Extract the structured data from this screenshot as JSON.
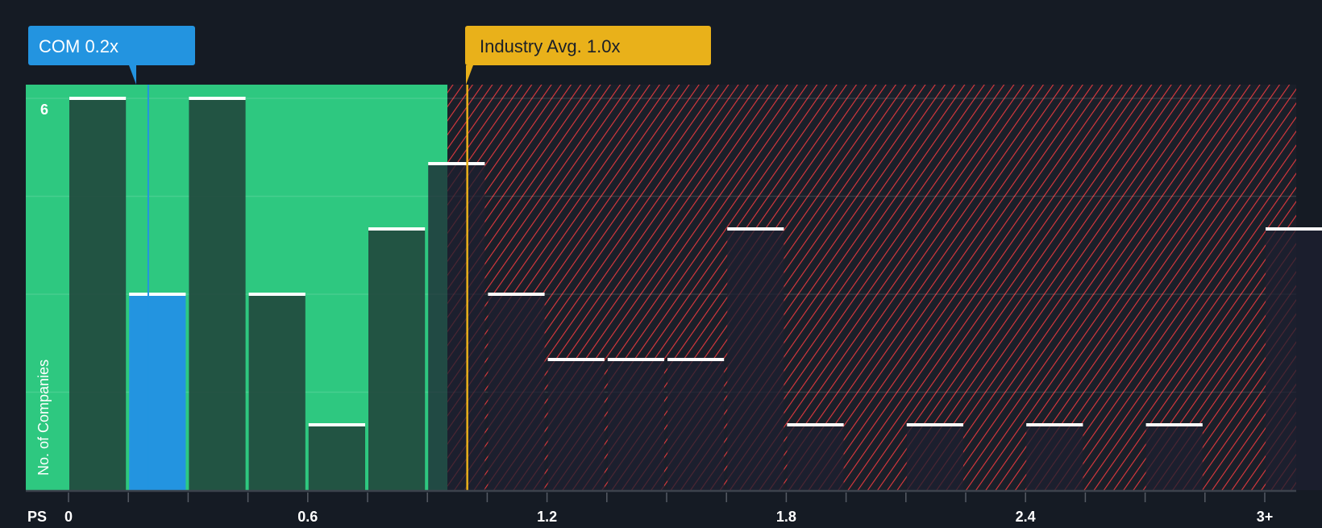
{
  "chart_data": {
    "type": "bar",
    "title": "",
    "xlabel": "PS",
    "ylabel": "No. of Companies",
    "bin_starts": [
      0,
      0.15,
      0.3,
      0.45,
      0.6,
      0.75,
      0.9,
      1.05,
      1.2,
      1.35,
      1.5,
      1.65,
      1.8,
      1.95,
      2.1,
      2.25,
      2.4,
      2.55,
      2.7,
      2.85,
      3.0
    ],
    "values": [
      6,
      3,
      6,
      3,
      1,
      4,
      5,
      3,
      2,
      2,
      2,
      4,
      1,
      0,
      1,
      0,
      1,
      0,
      1,
      0,
      4
    ],
    "highlight_index": 1,
    "x_ticks": [
      "0",
      "0.6",
      "1.2",
      "1.8",
      "2.4",
      "3+"
    ],
    "y_ticks": [
      "6"
    ],
    "ylim": [
      0,
      6
    ],
    "company": {
      "label": "COM 0.2x",
      "value": 0.2
    },
    "industry": {
      "label": "Industry Avg. 1.0x",
      "value": 1.0
    },
    "colors": {
      "green": "#2ec880",
      "blue": "#2394e0",
      "gold": "#e9b11a",
      "red": "#e0393e",
      "bg": "#151b24",
      "bar": "#21473c"
    }
  }
}
